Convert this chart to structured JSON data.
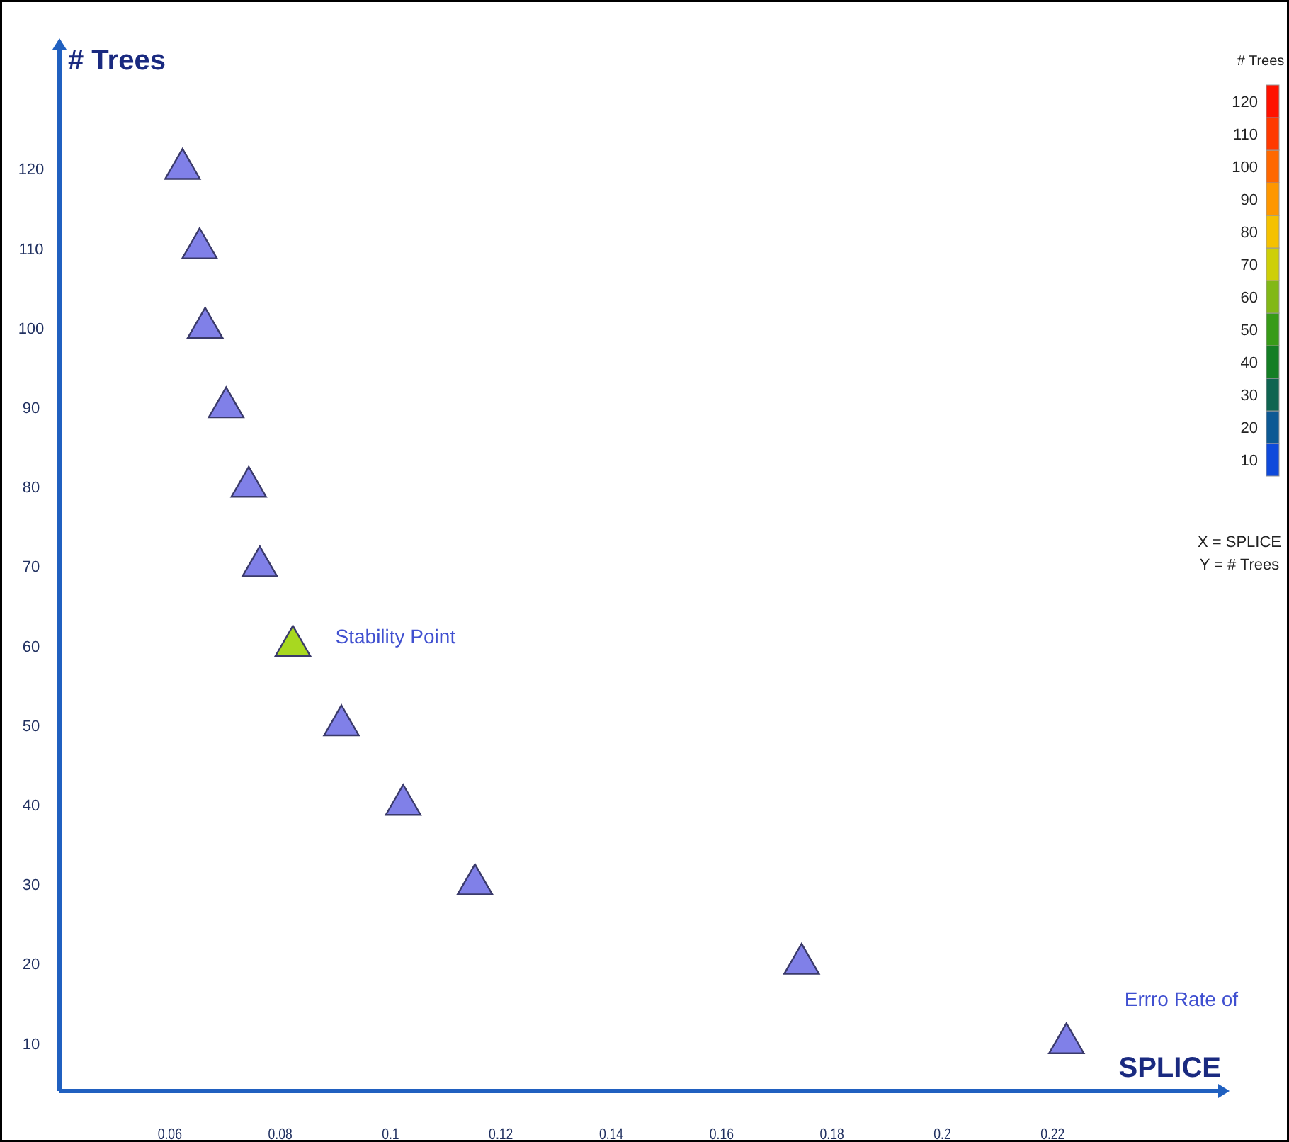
{
  "chart_data": {
    "type": "scatter",
    "xlabel": "SPLICE",
    "ylabel": "# Trees",
    "clabel": "# Trees",
    "x": [
      0.0623,
      0.0654,
      0.0664,
      0.0702,
      0.0743,
      0.0763,
      0.0823,
      0.0911,
      0.1023,
      0.1153,
      0.1745,
      0.2225
    ],
    "series": [
      {
        "values": [
          120,
          110,
          100,
          90,
          80,
          70,
          60,
          50,
          40,
          30,
          20,
          10
        ],
        "colors": [
          "#8080e8",
          "#8080e8",
          "#8080e8",
          "#8080e8",
          "#8080e8",
          "#8080e8",
          "#a8d820",
          "#8080e8",
          "#8080e8",
          "#8080e8",
          "#8080e8",
          "#8080e8"
        ]
      }
    ],
    "marker": "triangle",
    "xlim": [
      0.04,
      0.25
    ],
    "xticks": [
      0.06,
      0.08,
      0.1,
      0.12,
      0.14,
      0.16,
      0.18,
      0.2,
      0.22
    ],
    "ylim": [
      4,
      135
    ],
    "yticks": [
      10,
      20,
      30,
      40,
      50,
      60,
      70,
      80,
      90,
      100,
      110,
      120
    ],
    "clim": [
      5,
      125
    ],
    "cticks": [
      10,
      20,
      30,
      40,
      50,
      60,
      70,
      80,
      90,
      100,
      110,
      120
    ],
    "grid": false,
    "annotations": [
      {
        "text": "Stability Point",
        "x": 0.0823,
        "y": 60
      },
      "Errro Rate of",
      "X = SPLICE",
      "Y = # Trees"
    ]
  }
}
